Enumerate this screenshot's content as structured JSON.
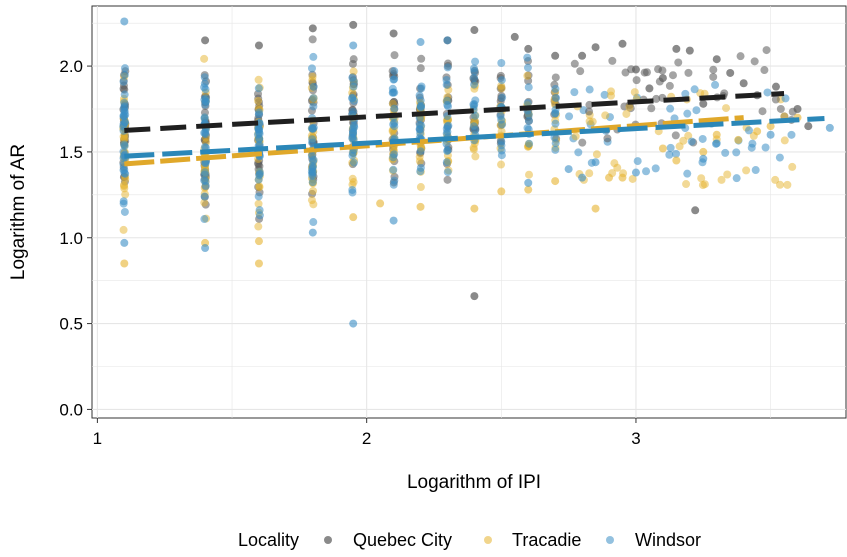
{
  "chart_data": {
    "type": "scatter",
    "title": "",
    "xlabel": "Logarithm of IPI",
    "ylabel": "Logarithm of AR",
    "xlim": [
      0.98,
      3.78
    ],
    "ylim": [
      -0.05,
      2.35
    ],
    "x_ticks": [
      1,
      2,
      3
    ],
    "x_tick_labels": [
      "1",
      "2",
      "3"
    ],
    "y_ticks": [
      0.0,
      0.5,
      1.0,
      1.5,
      2.0
    ],
    "y_tick_labels": [
      "0.0",
      "0.5",
      "1.0",
      "1.5",
      "2.0"
    ],
    "grid": true,
    "legend": {
      "title": "Locality",
      "position": "bottom",
      "entries": [
        "Quebec City",
        "Tracadie",
        "Windsor"
      ]
    },
    "colors": {
      "Quebec City": "#595959",
      "Tracadie": "#E6B32E",
      "Windsor": "#3A8EC4",
      "Quebec City line": "#1f1f1f",
      "Tracadie line": "#E0A82A",
      "Windsor line": "#2B87B8"
    },
    "series": [
      {
        "name": "Quebec City",
        "trend": {
          "x": [
            1.1,
            3.55
          ],
          "y": [
            1.625,
            1.84
          ]
        },
        "points": [
          [
            2.4,
            0.66
          ],
          [
            3.22,
            1.16
          ],
          [
            3.52,
            1.88
          ],
          [
            3.6,
            1.75
          ],
          [
            3.64,
            1.65
          ],
          [
            3.15,
            2.1
          ],
          [
            3.2,
            2.09
          ],
          [
            3.3,
            2.04
          ],
          [
            2.95,
            2.13
          ],
          [
            2.85,
            2.11
          ],
          [
            2.8,
            2.06
          ],
          [
            1.8,
            2.22
          ],
          [
            1.95,
            2.24
          ],
          [
            2.4,
            2.21
          ],
          [
            2.55,
            2.17
          ],
          [
            3.0,
            1.98
          ],
          [
            3.1,
            1.93
          ],
          [
            3.35,
            1.96
          ],
          [
            3.4,
            1.9
          ],
          [
            3.45,
            1.83
          ],
          [
            3.05,
            1.87
          ],
          [
            3.25,
            1.78
          ],
          [
            2.7,
            2.06
          ],
          [
            2.6,
            2.1
          ],
          [
            2.3,
            2.15
          ],
          [
            2.1,
            2.19
          ],
          [
            1.6,
            2.12
          ],
          [
            1.4,
            2.15
          ]
        ]
      },
      {
        "name": "Tracadie",
        "trend": {
          "x": [
            1.1,
            3.4
          ],
          "y": [
            1.43,
            1.7
          ]
        },
        "points": [
          [
            1.6,
            0.85
          ],
          [
            1.1,
            0.85
          ],
          [
            1.6,
            0.98
          ],
          [
            1.4,
            0.97
          ],
          [
            2.4,
            1.17
          ],
          [
            2.85,
            1.17
          ],
          [
            2.5,
            1.27
          ],
          [
            2.6,
            1.28
          ],
          [
            2.9,
            1.35
          ],
          [
            3.15,
            1.45
          ],
          [
            3.25,
            1.5
          ],
          [
            3.3,
            1.6
          ],
          [
            3.45,
            1.62
          ],
          [
            3.5,
            1.65
          ],
          [
            3.6,
            1.7
          ],
          [
            2.95,
            1.35
          ],
          [
            2.05,
            1.2
          ],
          [
            1.95,
            1.12
          ],
          [
            2.2,
            1.18
          ],
          [
            2.7,
            1.33
          ],
          [
            3.1,
            1.52
          ],
          [
            3.38,
            1.57
          ]
        ]
      },
      {
        "name": "Windsor",
        "trend": {
          "x": [
            1.1,
            3.7
          ],
          "y": [
            1.475,
            1.695
          ]
        },
        "points": [
          [
            1.95,
            0.5
          ],
          [
            1.1,
            2.26
          ],
          [
            1.95,
            2.12
          ],
          [
            2.2,
            2.14
          ],
          [
            2.3,
            2.15
          ],
          [
            2.75,
            1.4
          ],
          [
            2.8,
            1.35
          ],
          [
            3.0,
            1.38
          ],
          [
            3.25,
            1.46
          ],
          [
            3.3,
            1.55
          ],
          [
            3.72,
            1.64
          ],
          [
            1.1,
            0.97
          ],
          [
            1.4,
            0.94
          ],
          [
            1.8,
            1.03
          ],
          [
            2.1,
            1.1
          ],
          [
            2.6,
            1.32
          ],
          [
            2.85,
            1.44
          ],
          [
            3.5,
            1.6
          ]
        ]
      }
    ],
    "columns": {
      "x": [
        1.1,
        1.4,
        1.6,
        1.8,
        1.95,
        2.1,
        2.2,
        2.3,
        2.4,
        2.5,
        2.6,
        2.7
      ],
      "y_min": [
        0.95,
        0.95,
        1.0,
        1.0,
        1.1,
        1.1,
        1.2,
        1.2,
        1.2,
        1.25,
        1.25,
        1.3
      ],
      "y_max": [
        2.2,
        2.14,
        2.1,
        2.18,
        2.2,
        2.18,
        2.15,
        2.12,
        2.16,
        2.12,
        2.12,
        2.08
      ]
    }
  }
}
